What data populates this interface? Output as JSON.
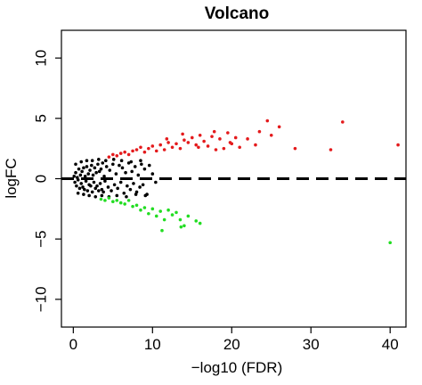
{
  "chart_data": {
    "type": "scatter",
    "title": "Volcano",
    "xlabel": "−log10 (FDR)",
    "ylabel": "logFC",
    "xlim": [
      -1.5,
      42
    ],
    "ylim": [
      -12.3,
      12.3
    ],
    "x_ticks": [
      0,
      10,
      20,
      30,
      40
    ],
    "y_ticks": [
      -10,
      -5,
      0,
      5,
      10
    ],
    "grid": false,
    "reference_line": {
      "y": 0,
      "style": "dashed",
      "color": "#000000"
    },
    "series": [
      {
        "color": "#000000",
        "points": [
          [
            0.1,
            0.2
          ],
          [
            0.2,
            -0.3
          ],
          [
            0.3,
            0.5
          ],
          [
            0.4,
            -0.6
          ],
          [
            0.5,
            0.1
          ],
          [
            0.6,
            -0.1
          ],
          [
            0.7,
            0.8
          ],
          [
            0.8,
            -0.8
          ],
          [
            0.9,
            0.3
          ],
          [
            1.0,
            -0.4
          ],
          [
            1.1,
            0.6
          ],
          [
            1.2,
            -0.7
          ],
          [
            1.3,
            0.9
          ],
          [
            1.4,
            -0.9
          ],
          [
            1.5,
            0.2
          ],
          [
            1.6,
            -0.2
          ],
          [
            1.7,
            1.0
          ],
          [
            1.8,
            -1.0
          ],
          [
            1.9,
            0.4
          ],
          [
            2.0,
            -0.5
          ],
          [
            2.1,
            0.7
          ],
          [
            2.2,
            -0.6
          ],
          [
            2.3,
            1.1
          ],
          [
            2.4,
            -1.1
          ],
          [
            2.5,
            0.3
          ],
          [
            2.6,
            -0.3
          ],
          [
            2.7,
            0.9
          ],
          [
            2.8,
            -0.8
          ],
          [
            2.9,
            0.5
          ],
          [
            3.0,
            -0.6
          ],
          [
            3.1,
            1.2
          ],
          [
            3.2,
            -1.0
          ],
          [
            3.3,
            0.6
          ],
          [
            3.4,
            -0.4
          ],
          [
            3.5,
            0.8
          ],
          [
            3.6,
            -0.9
          ],
          [
            3.7,
            1.3
          ],
          [
            3.8,
            -1.1
          ],
          [
            3.9,
            0.2
          ],
          [
            4.0,
            -0.2
          ],
          [
            4.2,
            1.0
          ],
          [
            4.4,
            -0.7
          ],
          [
            4.6,
            0.7
          ],
          [
            4.8,
            -1.0
          ],
          [
            5.0,
            1.2
          ],
          [
            5.2,
            -0.5
          ],
          [
            5.4,
            0.4
          ],
          [
            5.6,
            -0.8
          ],
          [
            5.8,
            1.1
          ],
          [
            6.0,
            -0.3
          ],
          [
            6.2,
            0.9
          ],
          [
            6.4,
            -1.2
          ],
          [
            6.6,
            0.5
          ],
          [
            6.8,
            -0.6
          ],
          [
            7.0,
            1.3
          ],
          [
            7.2,
            -0.9
          ],
          [
            7.4,
            0.6
          ],
          [
            7.6,
            -0.4
          ],
          [
            7.8,
            1.0
          ],
          [
            8.0,
            -1.1
          ],
          [
            8.2,
            0.3
          ],
          [
            8.4,
            -0.7
          ],
          [
            8.6,
            1.2
          ],
          [
            8.8,
            -0.5
          ],
          [
            9.0,
            0.8
          ],
          [
            9.3,
            -1.3
          ],
          [
            9.6,
            1.1
          ],
          [
            0.3,
            1.2
          ],
          [
            0.6,
            -1.2
          ],
          [
            1.0,
            1.4
          ],
          [
            1.3,
            -1.3
          ],
          [
            1.7,
            1.5
          ],
          [
            2.0,
            -1.4
          ],
          [
            2.4,
            1.5
          ],
          [
            2.8,
            -1.5
          ],
          [
            3.2,
            1.6
          ],
          [
            3.6,
            -1.4
          ],
          [
            4.1,
            1.5
          ],
          [
            4.5,
            -1.5
          ],
          [
            5.1,
            1.6
          ],
          [
            5.5,
            -1.4
          ],
          [
            6.1,
            1.5
          ],
          [
            6.7,
            -1.5
          ],
          [
            7.3,
            1.4
          ],
          [
            7.9,
            -1.3
          ],
          [
            8.5,
            1.5
          ],
          [
            9.1,
            -1.4
          ],
          [
            10.0,
            0.4
          ],
          [
            10.4,
            -0.3
          ]
        ]
      },
      {
        "color": "#e41a1c",
        "points": [
          [
            4.5,
            1.8
          ],
          [
            5.0,
            2.0
          ],
          [
            5.5,
            1.9
          ],
          [
            6.0,
            2.1
          ],
          [
            6.5,
            2.2
          ],
          [
            7.0,
            2.0
          ],
          [
            7.5,
            2.3
          ],
          [
            8.0,
            2.4
          ],
          [
            8.5,
            2.6
          ],
          [
            9.0,
            2.2
          ],
          [
            9.5,
            2.5
          ],
          [
            10.0,
            2.7
          ],
          [
            10.5,
            2.3
          ],
          [
            11.0,
            2.8
          ],
          [
            11.5,
            2.4
          ],
          [
            12.0,
            3.0
          ],
          [
            12.5,
            2.6
          ],
          [
            13.0,
            2.9
          ],
          [
            13.5,
            2.5
          ],
          [
            14.0,
            3.2
          ],
          [
            14.5,
            3.0
          ],
          [
            15.0,
            3.4
          ],
          [
            15.5,
            2.8
          ],
          [
            16.0,
            3.6
          ],
          [
            16.5,
            3.1
          ],
          [
            17.0,
            2.7
          ],
          [
            17.5,
            3.5
          ],
          [
            18.0,
            2.4
          ],
          [
            18.5,
            3.3
          ],
          [
            19.0,
            2.5
          ],
          [
            19.5,
            3.8
          ],
          [
            20.0,
            2.9
          ],
          [
            20.5,
            3.4
          ],
          [
            21.0,
            2.6
          ],
          [
            22.0,
            3.3
          ],
          [
            23.0,
            2.8
          ],
          [
            23.5,
            3.9
          ],
          [
            24.5,
            4.8
          ],
          [
            25.0,
            3.6
          ],
          [
            26.0,
            4.3
          ],
          [
            28.0,
            2.5
          ],
          [
            32.5,
            2.4
          ],
          [
            34.0,
            4.7
          ],
          [
            41.0,
            2.8
          ],
          [
            11.8,
            3.3
          ],
          [
            13.8,
            3.7
          ],
          [
            15.8,
            2.6
          ],
          [
            17.8,
            3.9
          ],
          [
            19.8,
            3.0
          ]
        ]
      },
      {
        "color": "#22dd22",
        "points": [
          [
            3.5,
            -1.7
          ],
          [
            4.0,
            -1.8
          ],
          [
            4.5,
            -1.6
          ],
          [
            5.0,
            -1.9
          ],
          [
            5.5,
            -1.8
          ],
          [
            6.0,
            -2.0
          ],
          [
            6.5,
            -2.1
          ],
          [
            7.0,
            -1.8
          ],
          [
            7.5,
            -2.3
          ],
          [
            8.0,
            -2.2
          ],
          [
            8.5,
            -2.6
          ],
          [
            9.0,
            -2.4
          ],
          [
            9.5,
            -2.9
          ],
          [
            10.0,
            -2.5
          ],
          [
            10.5,
            -3.1
          ],
          [
            11.0,
            -2.7
          ],
          [
            11.5,
            -3.4
          ],
          [
            12.0,
            -2.6
          ],
          [
            12.5,
            -3.0
          ],
          [
            13.0,
            -2.8
          ],
          [
            13.5,
            -3.4
          ],
          [
            14.0,
            -3.9
          ],
          [
            14.5,
            -3.1
          ],
          [
            15.5,
            -3.5
          ],
          [
            16.0,
            -3.7
          ],
          [
            11.2,
            -4.3
          ],
          [
            13.6,
            -4.0
          ],
          [
            40.0,
            -5.3
          ]
        ]
      }
    ]
  }
}
